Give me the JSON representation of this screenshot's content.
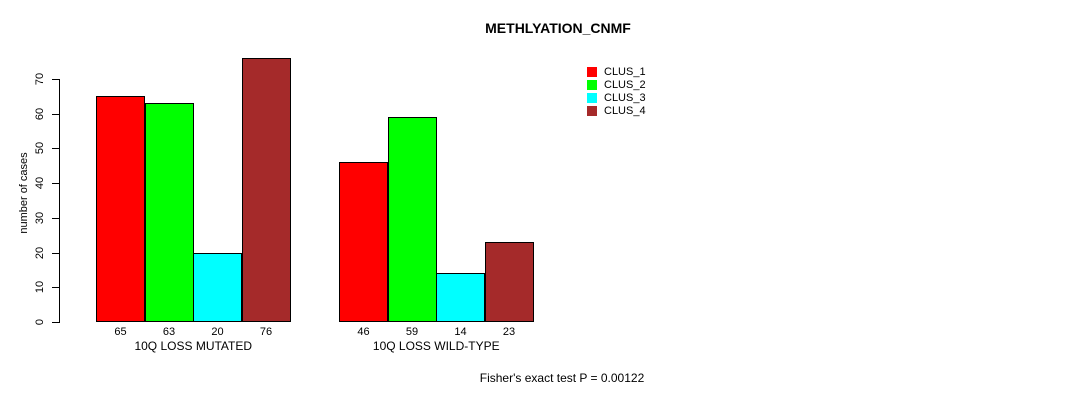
{
  "title": "METHLYATION_CNMF",
  "y_axis": {
    "label": "number of cases",
    "ticks": [
      0,
      10,
      20,
      30,
      40,
      50,
      60,
      70
    ]
  },
  "chart_data": {
    "type": "bar",
    "title": "METHLYATION_CNMF",
    "xlabel": "",
    "ylabel": "number of cases",
    "ylim": [
      0,
      70
    ],
    "grid": false,
    "legend_position": "top-right",
    "categories": [
      "10Q LOSS MUTATED",
      "10Q LOSS WILD-TYPE"
    ],
    "series": [
      {
        "name": "CLUS_1",
        "color": "#ff0000",
        "values": [
          65,
          46
        ]
      },
      {
        "name": "CLUS_2",
        "color": "#00ff00",
        "values": [
          63,
          59
        ]
      },
      {
        "name": "CLUS_3",
        "color": "#00ffff",
        "values": [
          20,
          14
        ]
      },
      {
        "name": "CLUS_4",
        "color": "#a52a2a",
        "values": [
          76,
          23
        ]
      }
    ],
    "bar_value_labels": [
      [
        65,
        63,
        20,
        76
      ],
      [
        46,
        59,
        14,
        23
      ]
    ],
    "annotation": "Fisher's exact test P = 0.00122"
  },
  "footer": {
    "text": "Fisher's exact test P = 0.00122"
  }
}
